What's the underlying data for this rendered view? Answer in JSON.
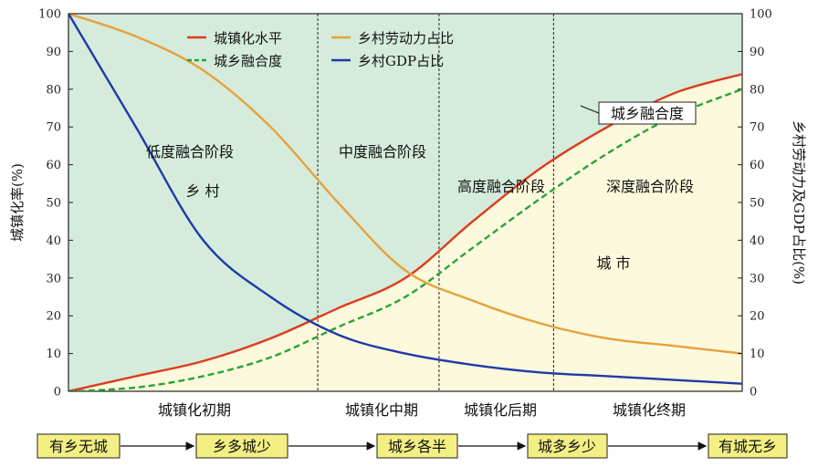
{
  "chart_data": {
    "type": "line",
    "title": "",
    "ylabel_left": "城镇化率(%)",
    "ylabel_right": "乡村劳动力及GDP占比(%)",
    "ylim": [
      0,
      100
    ],
    "yticks": [
      0,
      10,
      20,
      30,
      40,
      50,
      60,
      70,
      80,
      90,
      100
    ],
    "xlim": [
      0,
      100
    ],
    "grid": false,
    "legend_position": "top-center",
    "colors": {
      "urban_region": "#d5ecdc",
      "rural_region": "#fcf9dc",
      "urbanization": "#e03a1e",
      "integration": "#28a33a",
      "rural_labor": "#e5a23c",
      "rural_gdp": "#1f3aa8"
    },
    "series": [
      {
        "name": "城镇化水平",
        "style": "solid",
        "color_key": "urbanization",
        "x": [
          0,
          10,
          20,
          30,
          40,
          50,
          60,
          70,
          80,
          90,
          100
        ],
        "y": [
          0,
          4,
          8,
          14,
          22,
          30,
          45,
          59,
          70,
          79,
          84
        ]
      },
      {
        "name": "城乡融合度",
        "style": "dashed",
        "color_key": "integration",
        "x": [
          0,
          10,
          20,
          30,
          40,
          50,
          60,
          70,
          80,
          90,
          100
        ],
        "y": [
          0,
          1,
          4,
          9,
          17,
          25,
          38,
          51,
          63,
          73,
          80
        ]
      },
      {
        "name": "乡村劳动力占比",
        "style": "solid",
        "color_key": "rural_labor",
        "x": [
          0,
          10,
          20,
          30,
          40,
          50,
          60,
          70,
          80,
          90,
          100
        ],
        "y": [
          100,
          94,
          85,
          70,
          50,
          32,
          24,
          18,
          14,
          12,
          10
        ]
      },
      {
        "name": "乡村GDP占比",
        "style": "solid",
        "color_key": "rural_gdp",
        "x": [
          0,
          10,
          20,
          30,
          40,
          50,
          60,
          70,
          80,
          90,
          100
        ],
        "y": [
          100,
          70,
          40,
          25,
          15,
          10,
          7,
          5,
          4,
          3,
          2
        ]
      }
    ],
    "stage_boundaries_x": [
      37,
      55,
      72
    ],
    "integration_stages": [
      "低度融合阶段",
      "中度融合阶段",
      "高度融合阶段",
      "深度融合阶段"
    ],
    "urbanization_stages": [
      "城镇化初期",
      "城镇化中期",
      "城镇化后期",
      "城镇化终期"
    ],
    "region_labels": {
      "rural": "乡 村",
      "urban": "城 市"
    },
    "annotation": "城乡融合度"
  },
  "flow": {
    "steps": [
      "有乡无城",
      "乡多城少",
      "城乡各半",
      "城多乡少",
      "有城无乡"
    ]
  }
}
